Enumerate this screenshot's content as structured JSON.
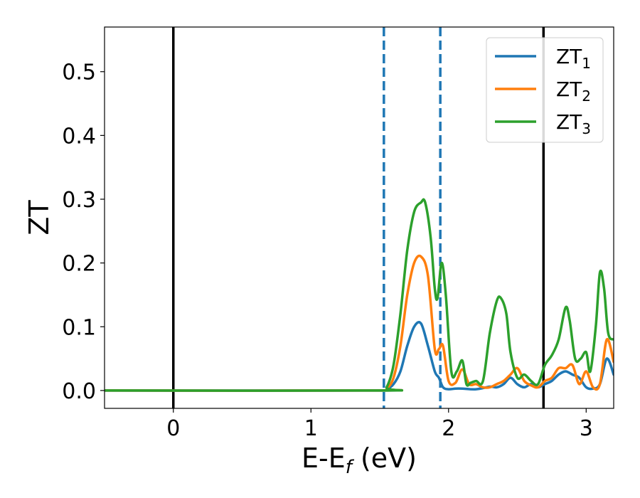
{
  "chart_data": {
    "type": "line",
    "xlabel": "E-E",
    "xlabel_sub": "f",
    "xlabel_unit": " (eV)",
    "ylabel": "ZT",
    "xlim": [
      -0.5,
      3.2
    ],
    "ylim": [
      -0.028,
      0.57
    ],
    "xticks": [
      0,
      1,
      2,
      3
    ],
    "xtick_labels": [
      "0",
      "1",
      "2",
      "3"
    ],
    "yticks": [
      0.0,
      0.1,
      0.2,
      0.3,
      0.4,
      0.5
    ],
    "ytick_labels": [
      "0.0",
      "0.1",
      "0.2",
      "0.3",
      "0.4",
      "0.5"
    ],
    "grid": false,
    "legend_position": "top-right",
    "vertical_lines": [
      {
        "x": 0.0,
        "style": "solid",
        "color": "#000000"
      },
      {
        "x": 1.53,
        "style": "dashed",
        "color": "#1f77b4"
      },
      {
        "x": 1.94,
        "style": "dashed",
        "color": "#1f77b4"
      },
      {
        "x": 2.69,
        "style": "solid",
        "color": "#000000"
      }
    ],
    "series": [
      {
        "name": "ZT",
        "name_sub": "1",
        "color": "#1f77b4",
        "x": [
          -0.5,
          1.5,
          1.55,
          1.6,
          1.65,
          1.7,
          1.75,
          1.8,
          1.85,
          1.9,
          1.93,
          1.96,
          2.0,
          2.05,
          2.1,
          2.2,
          2.3,
          2.35,
          2.4,
          2.45,
          2.5,
          2.55,
          2.6,
          2.65,
          2.7,
          2.75,
          2.8,
          2.85,
          2.9,
          2.95,
          3.0,
          3.05,
          3.1,
          3.15,
          3.2
        ],
        "y": [
          0.0,
          0.0,
          0.002,
          0.01,
          0.03,
          0.07,
          0.1,
          0.105,
          0.07,
          0.03,
          0.02,
          0.005,
          0.002,
          0.003,
          0.003,
          0.002,
          0.006,
          0.005,
          0.01,
          0.02,
          0.01,
          0.005,
          0.01,
          0.005,
          0.01,
          0.015,
          0.025,
          0.03,
          0.025,
          0.02,
          0.005,
          0.003,
          0.01,
          0.05,
          0.025
        ]
      },
      {
        "name": "ZT",
        "name_sub": "2",
        "color": "#ff7f0e",
        "x": [
          -0.5,
          1.5,
          1.55,
          1.6,
          1.65,
          1.7,
          1.75,
          1.8,
          1.85,
          1.9,
          1.93,
          1.96,
          2.0,
          2.05,
          2.1,
          2.15,
          2.2,
          2.25,
          2.3,
          2.35,
          2.4,
          2.45,
          2.5,
          2.55,
          2.6,
          2.65,
          2.7,
          2.75,
          2.8,
          2.85,
          2.9,
          2.95,
          3.0,
          3.05,
          3.1,
          3.15,
          3.2
        ],
        "y": [
          0.0,
          0.0,
          0.003,
          0.02,
          0.07,
          0.15,
          0.2,
          0.21,
          0.18,
          0.065,
          0.065,
          0.07,
          0.015,
          0.012,
          0.033,
          0.01,
          0.01,
          0.005,
          0.005,
          0.01,
          0.015,
          0.025,
          0.035,
          0.015,
          0.008,
          0.005,
          0.015,
          0.02,
          0.035,
          0.035,
          0.04,
          0.01,
          0.03,
          0.005,
          0.01,
          0.08,
          0.045
        ]
      },
      {
        "name": "ZT",
        "name_sub": "3",
        "color": "#2ca02c",
        "x": [
          -0.5,
          1.5,
          1.55,
          1.6,
          1.65,
          1.7,
          1.75,
          1.8,
          1.83,
          1.87,
          1.9,
          1.92,
          1.95,
          1.98,
          2.02,
          2.06,
          2.1,
          2.13,
          2.16,
          2.2,
          2.25,
          2.3,
          2.35,
          2.38,
          2.42,
          2.45,
          2.5,
          2.55,
          2.6,
          2.65,
          2.7,
          2.75,
          2.8,
          2.85,
          2.88,
          2.92,
          2.96,
          3.0,
          3.03,
          3.07,
          3.1,
          3.13,
          3.16,
          3.2
        ],
        "y": [
          0.0,
          0.0,
          0.005,
          0.04,
          0.12,
          0.22,
          0.28,
          0.295,
          0.295,
          0.24,
          0.16,
          0.145,
          0.2,
          0.15,
          0.03,
          0.03,
          0.047,
          0.01,
          0.012,
          0.015,
          0.015,
          0.09,
          0.14,
          0.145,
          0.12,
          0.06,
          0.02,
          0.025,
          0.015,
          0.01,
          0.04,
          0.055,
          0.08,
          0.13,
          0.11,
          0.05,
          0.05,
          0.06,
          0.03,
          0.1,
          0.185,
          0.16,
          0.09,
          0.08
        ]
      }
    ]
  }
}
